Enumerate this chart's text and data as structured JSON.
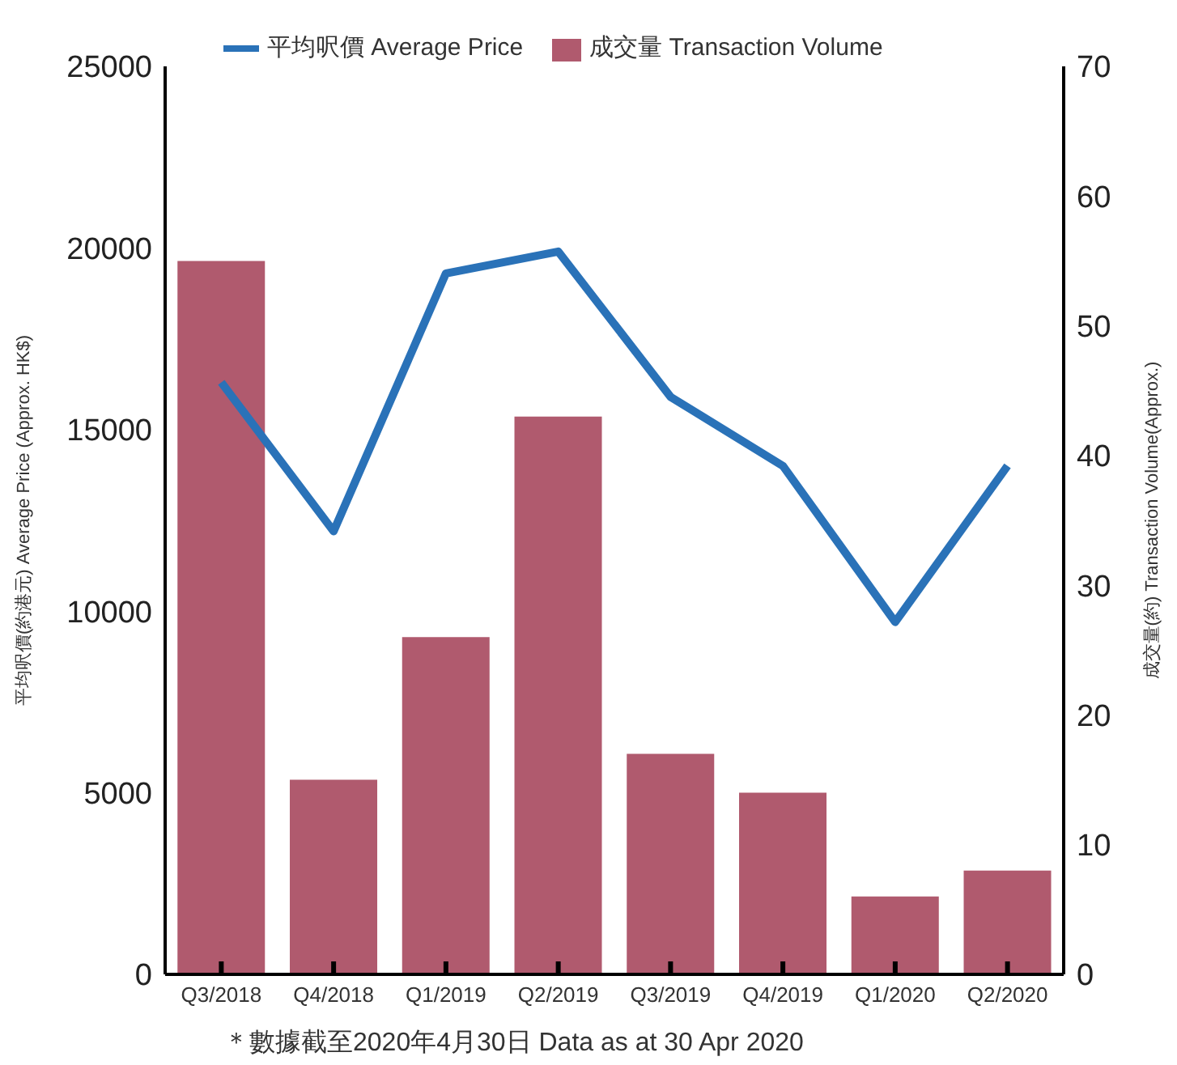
{
  "chart_data": {
    "type": "bar",
    "categories": [
      "Q3/2018",
      "Q4/2018",
      "Q1/2019",
      "Q2/2019",
      "Q3/2019",
      "Q4/2019",
      "Q1/2020",
      "Q2/2020"
    ],
    "series": [
      {
        "name": "平均呎價 Average Price",
        "type": "line",
        "color": "#2a72b8",
        "values": [
          16300,
          12200,
          19300,
          19900,
          15900,
          14000,
          9700,
          14000
        ]
      },
      {
        "name": "成交量 Transaction Volume",
        "axis": "y2",
        "color": "#b05a6e",
        "values": [
          55,
          15,
          26,
          43,
          17,
          14,
          6,
          8
        ]
      }
    ],
    "ylabel": "平均呎價(約港元) Average Price (Approx. HK$)",
    "y2label": "成交量(約) Transaction Volume(Approx.)",
    "ylim": [
      0,
      25000
    ],
    "yticks": [
      0,
      5000,
      10000,
      15000,
      20000,
      25000
    ],
    "y2lim": [
      0,
      70
    ],
    "y2ticks": [
      0,
      10,
      20,
      30,
      40,
      50,
      60,
      70
    ],
    "grid": false,
    "legend": "top",
    "marker": "none",
    "annotations": [
      "＊數據截至2020年4月30日  Data as at 30 Apr 2020"
    ]
  }
}
